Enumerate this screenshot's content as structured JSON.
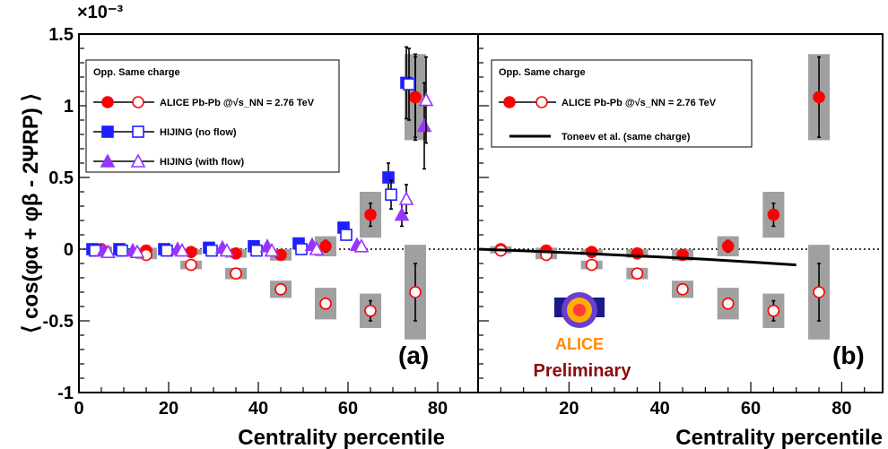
{
  "figure": {
    "exponent_label": "×10⁻³",
    "ylabel": "⟨ cos(φα + φβ - 2ΨRP) ⟩",
    "panel_a": {
      "tag": "(a)",
      "xlabel": "Centrality percentile"
    },
    "panel_b": {
      "tag": "(b)",
      "xlabel": "Centrality percentile"
    },
    "logo": {
      "name": "ALICE",
      "caption": "Preliminary"
    },
    "colors": {
      "alice": "#ff0000",
      "hijing_noflow": "#1f1fff",
      "hijing_flow": "#9933ff",
      "syst_box": "#a0a0a0",
      "toneev": "#000000"
    }
  },
  "chart_data": [
    {
      "type": "scatter",
      "panel": "a",
      "xlabel": "Centrality percentile",
      "ylabel": "⟨ cos(φα + φβ - 2ΨRP) ⟩",
      "yscale_factor": "×10⁻³",
      "xlim": [
        0,
        89
      ],
      "ylim": [
        -1.0,
        1.5
      ],
      "xticks": [
        0,
        20,
        40,
        60,
        80
      ],
      "yticks": [
        -1,
        -0.5,
        0,
        0.5,
        1,
        1.5
      ],
      "ytick_labels": [
        "-1",
        "-0.5",
        "0",
        "0.5",
        "1",
        "1.5"
      ],
      "legend": {
        "header": "Opp. Same charge",
        "entries": [
          {
            "label": "ALICE Pb-Pb @√s_NN = 2.76 TeV",
            "series": [
              "alice_opp",
              "alice_same"
            ]
          },
          {
            "label": "HIJING (no flow)",
            "series": [
              "hijing_noflow_opp",
              "hijing_noflow_same"
            ]
          },
          {
            "label": "HIJING (with flow)",
            "series": [
              "hijing_flow_opp",
              "hijing_flow_same"
            ]
          }
        ]
      },
      "series": [
        {
          "key": "alice_opp",
          "marker": "circle",
          "filled": true,
          "color": "#ff0000",
          "syst": true,
          "x": [
            5,
            15,
            25,
            35,
            45,
            55,
            65,
            75
          ],
          "y": [
            0.0,
            -0.01,
            -0.02,
            -0.03,
            -0.04,
            0.02,
            0.24,
            1.06
          ],
          "err": [
            0.01,
            0.01,
            0.01,
            0.01,
            0.015,
            0.04,
            0.08,
            0.28
          ],
          "syst_half": [
            0.02,
            0.02,
            0.02,
            0.03,
            0.04,
            0.07,
            0.16,
            0.3
          ]
        },
        {
          "key": "alice_same",
          "marker": "circle",
          "filled": false,
          "color": "#ff0000",
          "syst": true,
          "x": [
            5,
            15,
            25,
            35,
            45,
            55,
            65,
            75
          ],
          "y": [
            -0.01,
            -0.04,
            -0.11,
            -0.17,
            -0.28,
            -0.38,
            -0.43,
            -0.3
          ],
          "err": [
            0.005,
            0.008,
            0.01,
            0.015,
            0.02,
            0.03,
            0.07,
            0.2
          ],
          "syst_half": [
            0.02,
            0.03,
            0.03,
            0.04,
            0.06,
            0.11,
            0.12,
            0.33
          ]
        },
        {
          "key": "hijing_noflow_opp",
          "marker": "square",
          "filled": true,
          "color": "#1f1fff",
          "x": [
            3,
            9,
            19,
            29,
            39,
            49,
            59,
            69
          ],
          "y": [
            0.0,
            0.0,
            0.0,
            0.01,
            0.02,
            0.04,
            0.15,
            0.5
          ],
          "err": [
            0,
            0,
            0,
            0,
            0,
            0,
            0.03,
            0.1
          ]
        },
        {
          "key": "hijing_noflow_same",
          "marker": "square",
          "filled": false,
          "color": "#1f1fff",
          "x": [
            3.6,
            9.6,
            19.6,
            29.6,
            39.6,
            49.6,
            59.6,
            69.6
          ],
          "y": [
            -0.01,
            -0.01,
            -0.01,
            -0.01,
            -0.01,
            0.0,
            0.1,
            0.38
          ],
          "err": [
            0,
            0,
            0,
            0,
            0,
            0,
            0.03,
            0.1
          ]
        },
        {
          "key": "hijing_flow_opp",
          "marker": "triangle",
          "filled": true,
          "color": "#9933ff",
          "x": [
            5.5,
            12,
            22,
            32,
            42,
            52,
            62,
            72
          ],
          "y": [
            -0.01,
            -0.01,
            0.0,
            0.01,
            0.02,
            0.03,
            0.03,
            0.24
          ],
          "err": [
            0,
            0,
            0,
            0,
            0,
            0,
            0.02,
            0.08
          ]
        },
        {
          "key": "hijing_flow_same",
          "marker": "triangle",
          "filled": false,
          "color": "#9933ff",
          "x": [
            6.5,
            13,
            23,
            33,
            43,
            53,
            63,
            73
          ],
          "y": [
            -0.02,
            -0.02,
            -0.01,
            -0.01,
            -0.01,
            0.0,
            0.02,
            0.35
          ],
          "err": [
            0,
            0,
            0,
            0,
            0,
            0,
            0.02,
            0.1
          ]
        },
        {
          "key": "alice_opp_tail",
          "marker": "circle",
          "filled": true,
          "color": "#ff0000",
          "x": [
            75
          ],
          "y": [
            1.06
          ],
          "err": [
            0.3
          ]
        },
        {
          "key": "hijing_noflow_tail",
          "marker": "square",
          "filled": true,
          "color": "#1f1fff",
          "x": [
            73
          ],
          "y": [
            1.16
          ],
          "err": [
            0.25
          ]
        },
        {
          "key": "hijing_noflow_same_tail",
          "marker": "square",
          "filled": false,
          "color": "#1f1fff",
          "x": [
            73.6
          ],
          "y": [
            1.15
          ],
          "err": [
            0.25
          ]
        },
        {
          "key": "hijing_flow_tail",
          "marker": "triangle",
          "filled": true,
          "color": "#9933ff",
          "x": [
            77
          ],
          "y": [
            0.86
          ],
          "err": [
            0.3
          ]
        },
        {
          "key": "hijing_flow_same_tail",
          "marker": "triangle",
          "filled": false,
          "color": "#9933ff",
          "x": [
            77.4
          ],
          "y": [
            1.04
          ],
          "err": [
            0.3
          ]
        }
      ]
    },
    {
      "type": "scatter",
      "panel": "b",
      "xlabel": "Centrality percentile",
      "xlim": [
        0,
        89
      ],
      "ylim": [
        -1.0,
        1.5
      ],
      "xticks": [
        20,
        40,
        60,
        80
      ],
      "legend": {
        "header": "Opp. Same charge",
        "entries": [
          {
            "label": "ALICE Pb-Pb @√s_NN = 2.76 TeV",
            "series": [
              "alice_opp",
              "alice_same"
            ]
          },
          {
            "label": "Toneev et al. (same charge)",
            "series": [
              "toneev"
            ]
          }
        ]
      },
      "series": [
        {
          "key": "alice_opp",
          "marker": "circle",
          "filled": true,
          "color": "#ff0000",
          "syst": true,
          "x": [
            5,
            15,
            25,
            35,
            45,
            55,
            65,
            75
          ],
          "y": [
            0.0,
            -0.01,
            -0.02,
            -0.03,
            -0.04,
            0.02,
            0.24,
            1.06
          ],
          "err": [
            0.01,
            0.01,
            0.01,
            0.01,
            0.015,
            0.04,
            0.08,
            0.28
          ],
          "syst_half": [
            0.02,
            0.02,
            0.02,
            0.03,
            0.04,
            0.07,
            0.16,
            0.3
          ]
        },
        {
          "key": "alice_same",
          "marker": "circle",
          "filled": false,
          "color": "#ff0000",
          "syst": true,
          "x": [
            5,
            15,
            25,
            35,
            45,
            55,
            65,
            75
          ],
          "y": [
            -0.01,
            -0.04,
            -0.11,
            -0.17,
            -0.28,
            -0.38,
            -0.43,
            -0.3
          ],
          "err": [
            0.005,
            0.008,
            0.01,
            0.015,
            0.02,
            0.03,
            0.07,
            0.2
          ],
          "syst_half": [
            0.02,
            0.03,
            0.03,
            0.04,
            0.06,
            0.11,
            0.12,
            0.33
          ]
        },
        {
          "key": "toneev",
          "marker": "line",
          "color": "#000000",
          "x": [
            0,
            10,
            20,
            30,
            40,
            50,
            60,
            70
          ],
          "y": [
            0.0,
            -0.012,
            -0.025,
            -0.04,
            -0.055,
            -0.07,
            -0.09,
            -0.11
          ]
        }
      ]
    }
  ]
}
